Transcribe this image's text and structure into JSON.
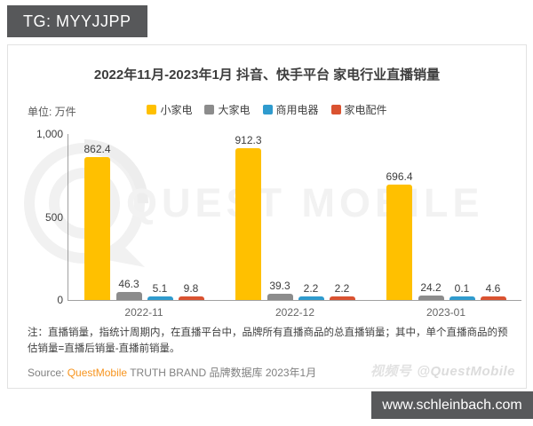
{
  "overlays": {
    "tg_label": "TG: MYYJJPP",
    "site_label": "www.schleinbach.com"
  },
  "chart_data": {
    "type": "bar",
    "title": "2022年11月-2023年1月 抖音、快手平台 家电行业直播销量",
    "unit_label": "单位: 万件",
    "categories": [
      "2022-11",
      "2022-12",
      "2023-01"
    ],
    "series": [
      {
        "name": "小家电",
        "color": "#FFC000",
        "values": [
          862.4,
          912.3,
          696.4
        ]
      },
      {
        "name": "大家电",
        "color": "#8C8C8C",
        "values": [
          46.3,
          39.3,
          24.2
        ]
      },
      {
        "name": "商用电器",
        "color": "#2F9BCE",
        "values": [
          5.1,
          2.2,
          0.1
        ]
      },
      {
        "name": "家电配件",
        "color": "#DA5230",
        "values": [
          9.8,
          2.2,
          4.6
        ]
      }
    ],
    "ylim": [
      0,
      1000
    ],
    "yticks": [
      {
        "label": "0",
        "value": 0
      },
      {
        "label": "500",
        "value": 500
      },
      {
        "label": "1,000",
        "value": 1000
      }
    ],
    "legend_position": "top",
    "grid": false
  },
  "footnote": {
    "text": "注：直播销量，指统计周期内，在直播平台中，品牌所有直播商品的总直播销量；其中，单个直播商品的预估销量=直播后销量-直播前销量。"
  },
  "source": {
    "prefix": "Source: ",
    "brand": "QuestMobile",
    "rest": " TRUTH BRAND 品牌数据库 2023年1月"
  },
  "watermark": {
    "brand_text": "QUEST MOBILE",
    "badge": "视频号",
    "handle": "@QuestMobile"
  }
}
